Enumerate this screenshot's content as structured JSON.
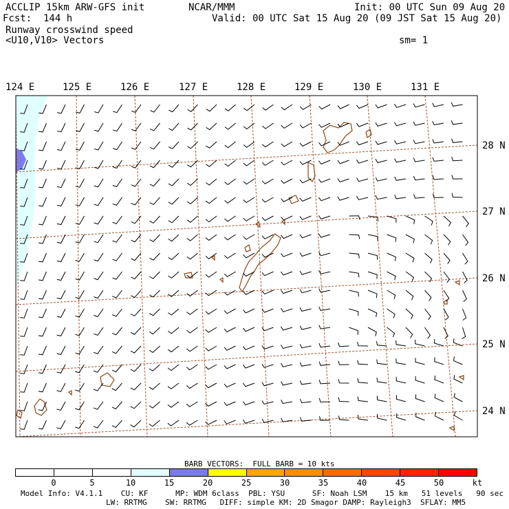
{
  "header": {
    "model": "ACCLIP 15km ARW-GFS init",
    "center": "NCAR/MMM",
    "init": "Init: 00 UTC Sun 09 Aug 20",
    "fcst": "Fcst:  144 h",
    "valid": "Valid: 00 UTC Sat 15 Aug 20 (09 JST Sat 15 Aug 20)",
    "field": "Runway crosswind speed",
    "vectors": "<U10,V10> Vectors",
    "smooth": "sm= 1"
  },
  "map": {
    "lon_labels": [
      "124 E",
      "125 E",
      "126 E",
      "127 E",
      "128 E",
      "129 E",
      "130 E",
      "131 E"
    ],
    "lat_labels": [
      "28 N",
      "27 N",
      "26 N",
      "25 N",
      "24 N"
    ],
    "gridline_color": "#a0522d",
    "coast_color": "#8b4513"
  },
  "legend": {
    "title": "BARB VECTORS:  FULL BARB = 10 kts",
    "ticks": [
      "0",
      "5",
      "10",
      "15",
      "20",
      "25",
      "30",
      "35",
      "40",
      "45",
      "50"
    ],
    "unit": "kt",
    "colors": [
      "#ffffff",
      "#ffffff",
      "#ffffff",
      "#e0ffff",
      "#7b7bef",
      "#ffff00",
      "#ffa500",
      "#ff8c00",
      "#ff6a00",
      "#ff4500",
      "#ff2200",
      "#ff0000"
    ]
  },
  "footer": {
    "line1": "Model Info: V4.1.1    CU: KF      MP: WDM 6class  PBL: YSU      SF: Noah LSM    15 km   51 levels   90 sec",
    "line2": "LW: RRTMG    SW: RRTMG   DIFF: simple KM: 2D Smagor DAMP: Rayleigh3  SFLAY: MM5"
  }
}
